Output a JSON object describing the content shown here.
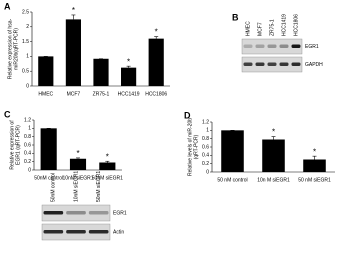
{
  "chart_data": [
    {
      "type": "bar",
      "label": "A",
      "ylabel": [
        "Relative expression of hsa-",
        "miR20b(qRT-PCR)"
      ],
      "categories": [
        "HMEC",
        "MCF7",
        "ZR75-1",
        "HCC1419",
        "HCC1806"
      ],
      "values": [
        1,
        2.25,
        0.92,
        0.62,
        1.6
      ],
      "errors": [
        0,
        0.15,
        0,
        0.05,
        0.07
      ],
      "markers": [
        null,
        "*",
        null,
        "*",
        "*"
      ],
      "color": "#000000",
      "ylim": [
        0,
        2.5
      ],
      "yticks": [
        0,
        0.5,
        1,
        1.5,
        2,
        2.5
      ]
    },
    {
      "type": "bar",
      "label": "C",
      "ylabel": [
        "Relative expression of",
        "EGR1 (qRT-PCR)"
      ],
      "categories": [
        "50nM control",
        "10nM siEGR1",
        "50nM siEGR1"
      ],
      "values": [
        1,
        0.27,
        0.18
      ],
      "errors": [
        0,
        0.02,
        0.03
      ],
      "markers": [
        null,
        "*",
        "*"
      ],
      "color": "#000000",
      "ylim": [
        0,
        1.2
      ],
      "yticks": [
        0,
        0.2,
        0.4,
        0.6,
        0.8,
        1,
        1.2
      ]
    },
    {
      "type": "bar",
      "label": "D",
      "ylabel": [
        "Relative levels of miR-20b",
        "(qRT-PCR)"
      ],
      "categories": [
        "50 nM control",
        "10n M siEGR1",
        "50 nM siEGR1"
      ],
      "values": [
        1,
        0.78,
        0.3
      ],
      "errors": [
        0,
        0.07,
        0.08
      ],
      "markers": [
        null,
        "*",
        "*"
      ],
      "color": "#000000",
      "ylim": [
        0,
        1.2
      ],
      "yticks": [
        0,
        0.2,
        0.4,
        0.6,
        0.8,
        1,
        1.2
      ]
    }
  ],
  "blots": [
    {
      "label": "B",
      "lanes": [
        "HMEC",
        "MCF7",
        "ZR75-1",
        "HCC1419",
        "HCC1806"
      ],
      "bands": [
        "EGR1",
        "GAPDH"
      ]
    },
    {
      "lanes": [
        "50nM control",
        "10nM siEGR1",
        "50nM siEGR1"
      ],
      "bands": [
        "EGR1",
        "Actin"
      ]
    }
  ]
}
